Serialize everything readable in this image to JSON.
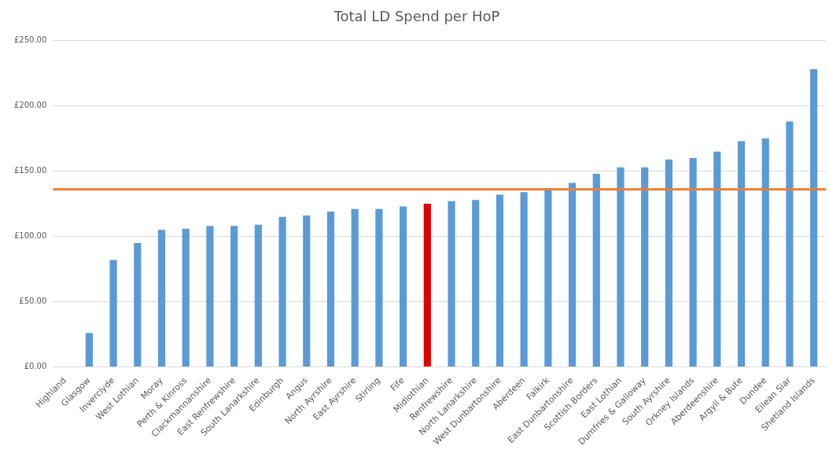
{
  "chart_data": {
    "type": "bar",
    "title": "Total LD Spend per HoP",
    "categories": [
      "Highland",
      "Glasgow",
      "Inverclyde",
      "West Lothian",
      "Moray",
      "Perth & Kinross",
      "Clackmannanshire",
      "East Renfrewshire",
      "South Lanarkshire",
      "Edinburgh",
      "Angus",
      "North Ayrshire",
      "East Ayrshire",
      "Stirling",
      "Fife",
      "Midlothian",
      "Renfrewshire",
      "North Lanarkshire",
      "West Dunbartonshire",
      "Aberdeen",
      "Falkirk",
      "East Dunbartonshire",
      "Scottish Borders",
      "East Lothian",
      "Dumfries & Galloway",
      "South Ayrshire",
      "Orkney Islands",
      "Aberdeenshire",
      "Argyll & Bute",
      "Dundee",
      "Eilean Siar",
      "Shetland Islands"
    ],
    "values": [
      null,
      26,
      82,
      95,
      105,
      106,
      108,
      108,
      109,
      115,
      116,
      119,
      121,
      121,
      123,
      125,
      127,
      128,
      132,
      134,
      137,
      141,
      148,
      153,
      153,
      159,
      160,
      165,
      173,
      175,
      188,
      228
    ],
    "colors": [
      "#5b9bd5",
      "#5b9bd5",
      "#5b9bd5",
      "#5b9bd5",
      "#5b9bd5",
      "#5b9bd5",
      "#5b9bd5",
      "#5b9bd5",
      "#5b9bd5",
      "#5b9bd5",
      "#5b9bd5",
      "#5b9bd5",
      "#5b9bd5",
      "#5b9bd5",
      "#5b9bd5",
      "#e00000",
      "#5b9bd5",
      "#5b9bd5",
      "#5b9bd5",
      "#5b9bd5",
      "#5b9bd5",
      "#5b9bd5",
      "#5b9bd5",
      "#5b9bd5",
      "#5b9bd5",
      "#5b9bd5",
      "#5b9bd5",
      "#5b9bd5",
      "#5b9bd5",
      "#5b9bd5",
      "#5b9bd5",
      "#5b9bd5"
    ],
    "ylim": [
      0,
      250
    ],
    "yticks": [
      {
        "value": 0,
        "label": "£0.00"
      },
      {
        "value": 50,
        "label": "£50.00"
      },
      {
        "value": 100,
        "label": "£100.00"
      },
      {
        "value": 150,
        "label": "£150.00"
      },
      {
        "value": 200,
        "label": "£200.00"
      },
      {
        "value": 250,
        "label": "£250.00"
      }
    ],
    "ref_lines": [
      {
        "axis": "y",
        "value": 136,
        "color": "#ed7d31"
      }
    ],
    "grid": "y",
    "legend": false
  }
}
